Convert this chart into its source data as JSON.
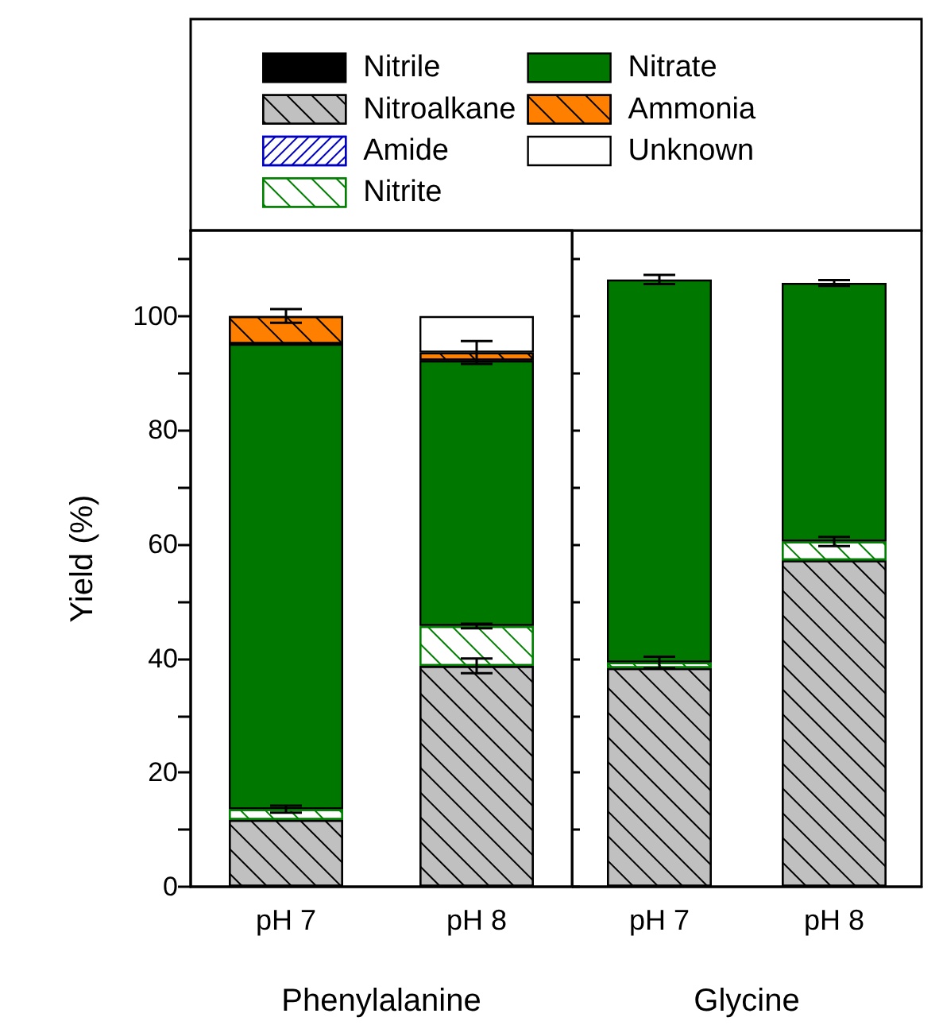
{
  "chart_data": [
    {
      "type": "bar",
      "stacked": true,
      "categories": [
        "pH 7",
        "pH 8"
      ],
      "xlabel": "Phenylalanine",
      "ylabel": "Yield (%)",
      "ylim": [
        0,
        115
      ],
      "yticks": [
        0,
        {
          "value": 10,
          "label": null
        },
        20,
        {
          "value": 30,
          "label": null
        },
        40,
        {
          "value": 50,
          "label": null
        },
        60,
        {
          "value": 70,
          "label": null
        },
        80,
        {
          "value": 90,
          "label": null
        },
        100,
        {
          "value": 110,
          "label": null
        }
      ],
      "legend": "top",
      "grid": false,
      "series": [
        {
          "name": "Nitrile",
          "color": "#000000",
          "values": [
            0,
            0
          ]
        },
        {
          "name": "Nitroalkane",
          "color": "#c0c0c0",
          "values": [
            11.7,
            38.7
          ],
          "errors": [
            null,
            1.3
          ]
        },
        {
          "name": "Amide",
          "color": "#ffffff",
          "values": [
            0,
            0
          ]
        },
        {
          "name": "Nitrite",
          "color": "#ffffff",
          "values": [
            1.9,
            7.0
          ],
          "errors": [
            0.6,
            0.4
          ]
        },
        {
          "name": "Nitrate",
          "color": "#007800",
          "values": [
            81.5,
            46.5
          ]
        },
        {
          "name": "Ammonia",
          "color": "#ff8000",
          "values": [
            4.9,
            1.4
          ],
          "errors": [
            1.2,
            2.0
          ]
        },
        {
          "name": "Unknown",
          "color": "#ffffff",
          "values": [
            0,
            6.4
          ]
        }
      ]
    },
    {
      "type": "bar",
      "stacked": true,
      "categories": [
        "pH 7",
        "pH 8"
      ],
      "xlabel": "Glycine",
      "ylim": [
        0,
        115
      ],
      "yticks": [
        0,
        {
          "value": 10,
          "label": null
        },
        20,
        {
          "value": 30,
          "label": null
        },
        40,
        {
          "value": 50,
          "label": null
        },
        60,
        {
          "value": 70,
          "label": null
        },
        80,
        {
          "value": 90,
          "label": null
        },
        100,
        {
          "value": 110,
          "label": null
        }
      ],
      "tick_labels": "x",
      "grid": false,
      "series": [
        {
          "color": "#000000",
          "values": [
            0,
            0
          ]
        },
        {
          "color": "#c0c0c0",
          "values": [
            38.3,
            57.2
          ]
        },
        {
          "color": "#ffffff",
          "values": [
            0,
            0
          ]
        },
        {
          "color": "#ffffff",
          "values": [
            1.0,
            3.3
          ],
          "errors": [
            1.0,
            0.8
          ]
        },
        {
          "color": "#007800",
          "values": [
            67.1,
            45.3
          ],
          "errors": [
            0.8,
            0.5
          ]
        },
        {
          "color": "#ff8000",
          "values": [
            0,
            0
          ]
        },
        {
          "color": "#ffffff",
          "values": [
            0,
            0
          ]
        }
      ]
    }
  ]
}
